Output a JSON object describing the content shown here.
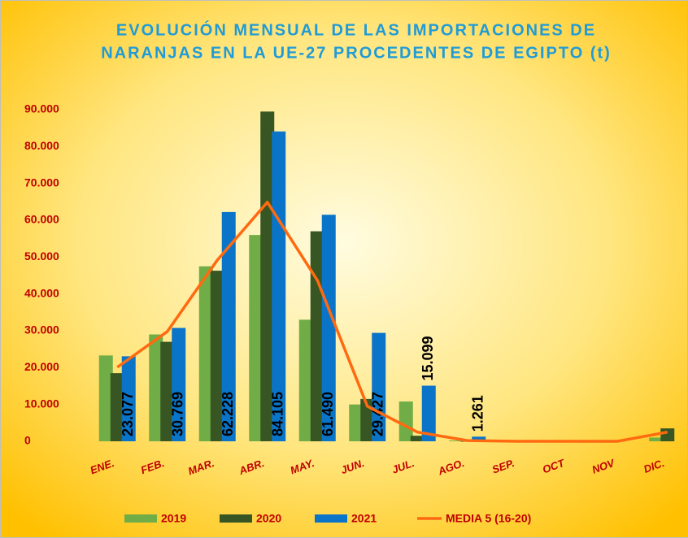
{
  "chart_data": {
    "type": "bar",
    "title": [
      "EVOLUCIÓN  MENSUAL DE LAS IMPORTACIONES DE",
      "NARANJAS EN LA UE-27 PROCEDENTES DE EGIPTO (t)"
    ],
    "categories": [
      "ENE.",
      "FEB.",
      "MAR.",
      "ABR.",
      "MAY.",
      "JUN.",
      "JUL.",
      "AGO.",
      "SEP.",
      "OCT",
      "NOV",
      "DIC."
    ],
    "series": [
      {
        "name": "2019",
        "type": "bar",
        "color": "#70ad47",
        "values": [
          23300,
          29000,
          47500,
          56000,
          33000,
          10000,
          10800,
          200,
          0,
          0,
          0,
          1000
        ]
      },
      {
        "name": "2020",
        "type": "bar",
        "color": "#375623",
        "values": [
          18500,
          27000,
          46300,
          89500,
          57000,
          11500,
          1500,
          0,
          0,
          0,
          0,
          3500
        ]
      },
      {
        "name": "2021",
        "type": "bar",
        "color": "#0a75c8",
        "values": [
          23077,
          30769,
          62228,
          84105,
          61490,
          29427,
          15099,
          1261,
          null,
          null,
          null,
          null
        ],
        "value_labels": [
          "23.077",
          "30.769",
          "62.228",
          "84.105",
          "61.490",
          "29.427",
          "15.099",
          "1.261",
          null,
          null,
          null,
          null
        ]
      },
      {
        "name": "MEDIA 5 (16-20)",
        "type": "line",
        "color": "#ff6a10",
        "values": [
          20100,
          29800,
          49200,
          64900,
          43700,
          9500,
          2500,
          200,
          0,
          0,
          0,
          2500
        ]
      }
    ],
    "ylim": [
      0,
      90000
    ],
    "yticks": [
      0,
      {
        "value": 10000,
        "label": "10.000"
      },
      {
        "value": 20000,
        "label": "20.000"
      },
      {
        "value": 30000,
        "label": "30.000"
      },
      {
        "value": 40000,
        "label": "40.000"
      },
      {
        "value": 50000,
        "label": "50.000"
      },
      {
        "value": 60000,
        "label": "60.000"
      },
      {
        "value": 70000,
        "label": "70.000"
      },
      {
        "value": 80000,
        "label": "80.000"
      },
      {
        "value": 90000,
        "label": "90.000"
      }
    ],
    "grid": false,
    "legend": "bottom"
  }
}
